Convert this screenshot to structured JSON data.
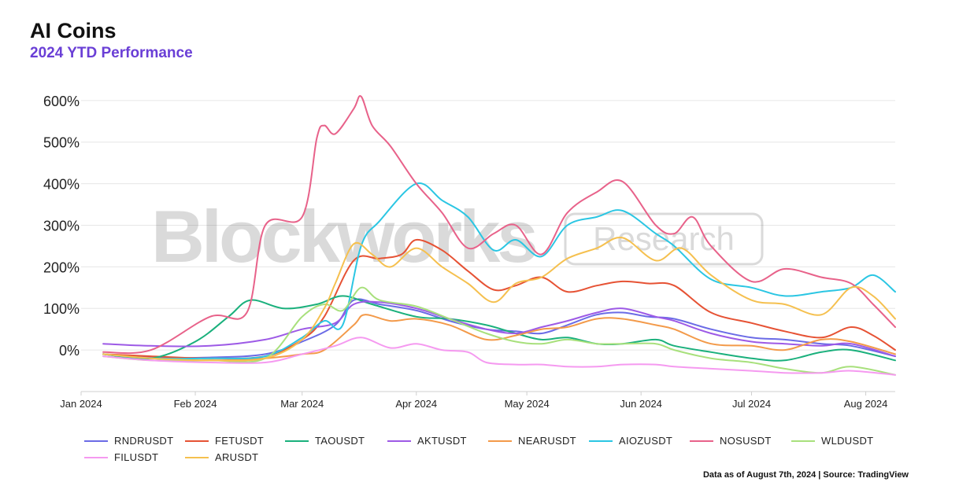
{
  "title": "AI Coins",
  "subtitle": "2024 YTD Performance",
  "source_note": "Data as of August 7th, 2024 | Source: TradingView",
  "watermark": {
    "brand": "Blockworks",
    "tag": "Research"
  },
  "chart_data": {
    "type": "line",
    "ylim": [
      -100,
      630
    ],
    "xlim": [
      "2024-01-01",
      "2024-08-09"
    ],
    "grid": "horizontal",
    "legend_placement": "bottom",
    "y_ticks": [
      0,
      100,
      200,
      300,
      400,
      500,
      600
    ],
    "y_tick_labels": [
      "0%",
      "100%",
      "200%",
      "300%",
      "400%",
      "500%",
      "600%"
    ],
    "x_ticks": [
      "2024-01-01",
      "2024-02-01",
      "2024-03-01",
      "2024-04-01",
      "2024-05-01",
      "2024-06-01",
      "2024-07-01",
      "2024-08-01"
    ],
    "x_tick_labels": [
      "Jan 2024",
      "Feb 2024",
      "Mar 2024",
      "Apr 2024",
      "May 2024",
      "Jun 2024",
      "Jul 2024",
      "Aug 2024"
    ],
    "series": [
      {
        "name": "RNDRUSDT",
        "color": "#6b6be6",
        "points": [
          [
            "2024-01-07",
            -10
          ],
          [
            "2024-01-20",
            -18
          ],
          [
            "2024-02-05",
            -18
          ],
          [
            "2024-02-20",
            -10
          ],
          [
            "2024-03-01",
            20
          ],
          [
            "2024-03-10",
            60
          ],
          [
            "2024-03-15",
            120
          ],
          [
            "2024-03-22",
            110
          ],
          [
            "2024-04-01",
            95
          ],
          [
            "2024-04-10",
            70
          ],
          [
            "2024-04-20",
            50
          ],
          [
            "2024-04-28",
            45
          ],
          [
            "2024-05-05",
            40
          ],
          [
            "2024-05-12",
            60
          ],
          [
            "2024-05-20",
            85
          ],
          [
            "2024-05-27",
            90
          ],
          [
            "2024-06-03",
            80
          ],
          [
            "2024-06-10",
            75
          ],
          [
            "2024-06-20",
            50
          ],
          [
            "2024-07-01",
            30
          ],
          [
            "2024-07-10",
            25
          ],
          [
            "2024-07-20",
            15
          ],
          [
            "2024-07-28",
            10
          ],
          [
            "2024-08-09",
            -15
          ]
        ]
      },
      {
        "name": "FETUSDT",
        "color": "#e65234",
        "points": [
          [
            "2024-01-07",
            -10
          ],
          [
            "2024-01-20",
            -15
          ],
          [
            "2024-02-05",
            -20
          ],
          [
            "2024-02-20",
            -15
          ],
          [
            "2024-03-01",
            25
          ],
          [
            "2024-03-07",
            80
          ],
          [
            "2024-03-15",
            215
          ],
          [
            "2024-03-22",
            220
          ],
          [
            "2024-03-28",
            230
          ],
          [
            "2024-04-01",
            265
          ],
          [
            "2024-04-08",
            240
          ],
          [
            "2024-04-15",
            190
          ],
          [
            "2024-04-22",
            145
          ],
          [
            "2024-04-28",
            155
          ],
          [
            "2024-05-05",
            175
          ],
          [
            "2024-05-12",
            140
          ],
          [
            "2024-05-20",
            155
          ],
          [
            "2024-05-27",
            165
          ],
          [
            "2024-06-03",
            160
          ],
          [
            "2024-06-10",
            155
          ],
          [
            "2024-06-20",
            90
          ],
          [
            "2024-07-01",
            65
          ],
          [
            "2024-07-10",
            45
          ],
          [
            "2024-07-20",
            30
          ],
          [
            "2024-07-28",
            55
          ],
          [
            "2024-08-03",
            35
          ],
          [
            "2024-08-09",
            0
          ]
        ]
      },
      {
        "name": "TAOUSDT",
        "color": "#1ab07c",
        "points": [
          [
            "2024-01-07",
            -10
          ],
          [
            "2024-01-20",
            -20
          ],
          [
            "2024-02-01",
            20
          ],
          [
            "2024-02-10",
            80
          ],
          [
            "2024-02-16",
            120
          ],
          [
            "2024-02-25",
            100
          ],
          [
            "2024-03-05",
            110
          ],
          [
            "2024-03-12",
            130
          ],
          [
            "2024-03-20",
            110
          ],
          [
            "2024-04-01",
            80
          ],
          [
            "2024-04-10",
            75
          ],
          [
            "2024-04-20",
            60
          ],
          [
            "2024-04-28",
            40
          ],
          [
            "2024-05-05",
            25
          ],
          [
            "2024-05-12",
            30
          ],
          [
            "2024-05-20",
            15
          ],
          [
            "2024-05-27",
            15
          ],
          [
            "2024-06-05",
            25
          ],
          [
            "2024-06-10",
            10
          ],
          [
            "2024-06-20",
            -5
          ],
          [
            "2024-07-01",
            -20
          ],
          [
            "2024-07-10",
            -25
          ],
          [
            "2024-07-20",
            -5
          ],
          [
            "2024-07-28",
            0
          ],
          [
            "2024-08-09",
            -25
          ]
        ]
      },
      {
        "name": "AKTUSDT",
        "color": "#9d5ae6",
        "points": [
          [
            "2024-01-07",
            15
          ],
          [
            "2024-01-20",
            10
          ],
          [
            "2024-02-05",
            10
          ],
          [
            "2024-02-20",
            25
          ],
          [
            "2024-03-01",
            50
          ],
          [
            "2024-03-10",
            65
          ],
          [
            "2024-03-15",
            110
          ],
          [
            "2024-03-22",
            115
          ],
          [
            "2024-04-01",
            100
          ],
          [
            "2024-04-10",
            75
          ],
          [
            "2024-04-20",
            50
          ],
          [
            "2024-04-28",
            40
          ],
          [
            "2024-05-05",
            55
          ],
          [
            "2024-05-12",
            70
          ],
          [
            "2024-05-20",
            90
          ],
          [
            "2024-05-27",
            100
          ],
          [
            "2024-06-05",
            80
          ],
          [
            "2024-06-10",
            70
          ],
          [
            "2024-06-20",
            40
          ],
          [
            "2024-07-01",
            20
          ],
          [
            "2024-07-10",
            15
          ],
          [
            "2024-07-20",
            10
          ],
          [
            "2024-07-28",
            15
          ],
          [
            "2024-08-09",
            -15
          ]
        ]
      },
      {
        "name": "NEARUSDT",
        "color": "#f39a4a",
        "points": [
          [
            "2024-01-07",
            -10
          ],
          [
            "2024-01-20",
            -20
          ],
          [
            "2024-02-05",
            -25
          ],
          [
            "2024-02-20",
            -20
          ],
          [
            "2024-03-01",
            -10
          ],
          [
            "2024-03-07",
            0
          ],
          [
            "2024-03-15",
            60
          ],
          [
            "2024-03-18",
            85
          ],
          [
            "2024-03-25",
            70
          ],
          [
            "2024-04-01",
            75
          ],
          [
            "2024-04-10",
            60
          ],
          [
            "2024-04-20",
            25
          ],
          [
            "2024-04-28",
            35
          ],
          [
            "2024-05-05",
            50
          ],
          [
            "2024-05-12",
            55
          ],
          [
            "2024-05-20",
            75
          ],
          [
            "2024-05-27",
            75
          ],
          [
            "2024-06-05",
            60
          ],
          [
            "2024-06-10",
            50
          ],
          [
            "2024-06-20",
            15
          ],
          [
            "2024-07-01",
            10
          ],
          [
            "2024-07-10",
            0
          ],
          [
            "2024-07-20",
            25
          ],
          [
            "2024-07-28",
            20
          ],
          [
            "2024-08-09",
            -10
          ]
        ]
      },
      {
        "name": "AIOZUSDT",
        "color": "#2bc6e3",
        "points": [
          [
            "2024-01-07",
            -10
          ],
          [
            "2024-01-20",
            -20
          ],
          [
            "2024-02-05",
            -20
          ],
          [
            "2024-02-20",
            -15
          ],
          [
            "2024-03-01",
            30
          ],
          [
            "2024-03-07",
            70
          ],
          [
            "2024-03-12",
            60
          ],
          [
            "2024-03-17",
            250
          ],
          [
            "2024-03-22",
            310
          ],
          [
            "2024-04-01",
            400
          ],
          [
            "2024-04-08",
            360
          ],
          [
            "2024-04-15",
            320
          ],
          [
            "2024-04-22",
            240
          ],
          [
            "2024-04-28",
            265
          ],
          [
            "2024-05-05",
            225
          ],
          [
            "2024-05-12",
            300
          ],
          [
            "2024-05-20",
            320
          ],
          [
            "2024-05-27",
            335
          ],
          [
            "2024-06-05",
            280
          ],
          [
            "2024-06-10",
            250
          ],
          [
            "2024-06-20",
            170
          ],
          [
            "2024-07-01",
            150
          ],
          [
            "2024-07-10",
            130
          ],
          [
            "2024-07-20",
            140
          ],
          [
            "2024-07-28",
            150
          ],
          [
            "2024-08-03",
            180
          ],
          [
            "2024-08-09",
            140
          ]
        ]
      },
      {
        "name": "NOSUSDT",
        "color": "#e8628a",
        "points": [
          [
            "2024-01-07",
            -5
          ],
          [
            "2024-01-20",
            0
          ],
          [
            "2024-02-05",
            80
          ],
          [
            "2024-02-15",
            90
          ],
          [
            "2024-02-20",
            300
          ],
          [
            "2024-03-01",
            320
          ],
          [
            "2024-03-05",
            510
          ],
          [
            "2024-03-07",
            540
          ],
          [
            "2024-03-10",
            520
          ],
          [
            "2024-03-15",
            580
          ],
          [
            "2024-03-17",
            610
          ],
          [
            "2024-03-20",
            540
          ],
          [
            "2024-03-25",
            490
          ],
          [
            "2024-04-01",
            400
          ],
          [
            "2024-04-08",
            330
          ],
          [
            "2024-04-15",
            245
          ],
          [
            "2024-04-22",
            280
          ],
          [
            "2024-04-28",
            300
          ],
          [
            "2024-05-05",
            230
          ],
          [
            "2024-05-12",
            330
          ],
          [
            "2024-05-20",
            380
          ],
          [
            "2024-05-27",
            405
          ],
          [
            "2024-06-05",
            300
          ],
          [
            "2024-06-10",
            280
          ],
          [
            "2024-06-15",
            320
          ],
          [
            "2024-06-20",
            250
          ],
          [
            "2024-07-01",
            165
          ],
          [
            "2024-07-10",
            195
          ],
          [
            "2024-07-20",
            175
          ],
          [
            "2024-07-28",
            160
          ],
          [
            "2024-08-03",
            110
          ],
          [
            "2024-08-09",
            55
          ]
        ]
      },
      {
        "name": "WLDUSDT",
        "color": "#a8e07c",
        "points": [
          [
            "2024-01-07",
            -15
          ],
          [
            "2024-01-20",
            -25
          ],
          [
            "2024-02-05",
            -25
          ],
          [
            "2024-02-20",
            -20
          ],
          [
            "2024-03-01",
            80
          ],
          [
            "2024-03-07",
            110
          ],
          [
            "2024-03-12",
            95
          ],
          [
            "2024-03-17",
            150
          ],
          [
            "2024-03-22",
            120
          ],
          [
            "2024-04-01",
            105
          ],
          [
            "2024-04-10",
            75
          ],
          [
            "2024-04-20",
            40
          ],
          [
            "2024-04-28",
            20
          ],
          [
            "2024-05-05",
            15
          ],
          [
            "2024-05-12",
            25
          ],
          [
            "2024-05-20",
            15
          ],
          [
            "2024-05-27",
            15
          ],
          [
            "2024-06-05",
            15
          ],
          [
            "2024-06-10",
            0
          ],
          [
            "2024-06-20",
            -20
          ],
          [
            "2024-07-01",
            -30
          ],
          [
            "2024-07-10",
            -45
          ],
          [
            "2024-07-20",
            -55
          ],
          [
            "2024-07-28",
            -40
          ],
          [
            "2024-08-09",
            -60
          ]
        ]
      },
      {
        "name": "FILUSDT",
        "color": "#f59af0",
        "points": [
          [
            "2024-01-07",
            -15
          ],
          [
            "2024-01-20",
            -25
          ],
          [
            "2024-02-05",
            -30
          ],
          [
            "2024-02-20",
            -30
          ],
          [
            "2024-03-01",
            -10
          ],
          [
            "2024-03-10",
            10
          ],
          [
            "2024-03-17",
            30
          ],
          [
            "2024-03-25",
            5
          ],
          [
            "2024-04-01",
            15
          ],
          [
            "2024-04-08",
            0
          ],
          [
            "2024-04-15",
            -5
          ],
          [
            "2024-04-20",
            -30
          ],
          [
            "2024-04-28",
            -35
          ],
          [
            "2024-05-05",
            -35
          ],
          [
            "2024-05-12",
            -40
          ],
          [
            "2024-05-20",
            -40
          ],
          [
            "2024-05-27",
            -35
          ],
          [
            "2024-06-05",
            -35
          ],
          [
            "2024-06-10",
            -40
          ],
          [
            "2024-06-20",
            -45
          ],
          [
            "2024-07-01",
            -50
          ],
          [
            "2024-07-10",
            -55
          ],
          [
            "2024-07-20",
            -55
          ],
          [
            "2024-07-28",
            -50
          ],
          [
            "2024-08-09",
            -60
          ]
        ]
      },
      {
        "name": "ARUSDT",
        "color": "#f5c04f",
        "points": [
          [
            "2024-01-07",
            -10
          ],
          [
            "2024-01-20",
            -20
          ],
          [
            "2024-02-05",
            -25
          ],
          [
            "2024-02-20",
            -20
          ],
          [
            "2024-03-01",
            25
          ],
          [
            "2024-03-07",
            100
          ],
          [
            "2024-03-10",
            160
          ],
          [
            "2024-03-15",
            255
          ],
          [
            "2024-03-20",
            230
          ],
          [
            "2024-03-25",
            200
          ],
          [
            "2024-04-01",
            245
          ],
          [
            "2024-04-08",
            200
          ],
          [
            "2024-04-15",
            160
          ],
          [
            "2024-04-22",
            115
          ],
          [
            "2024-04-28",
            160
          ],
          [
            "2024-05-05",
            175
          ],
          [
            "2024-05-12",
            220
          ],
          [
            "2024-05-20",
            245
          ],
          [
            "2024-05-27",
            270
          ],
          [
            "2024-06-05",
            215
          ],
          [
            "2024-06-12",
            245
          ],
          [
            "2024-06-20",
            180
          ],
          [
            "2024-07-01",
            120
          ],
          [
            "2024-07-10",
            110
          ],
          [
            "2024-07-20",
            85
          ],
          [
            "2024-07-28",
            150
          ],
          [
            "2024-08-03",
            130
          ],
          [
            "2024-08-09",
            75
          ]
        ]
      }
    ]
  }
}
